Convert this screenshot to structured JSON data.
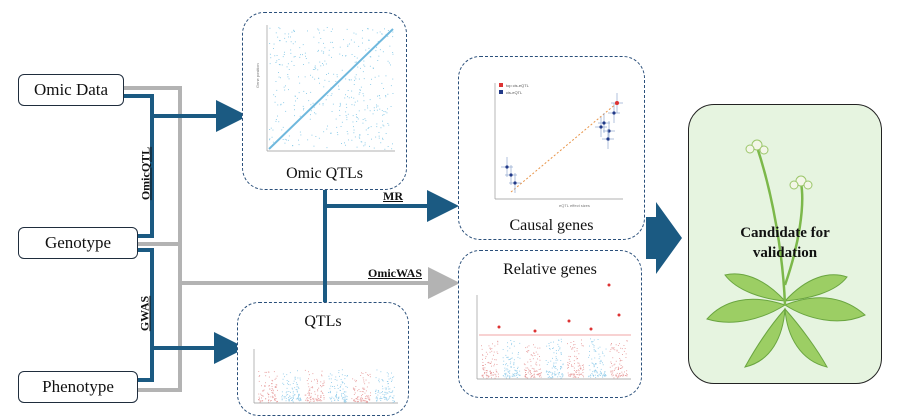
{
  "inputs": {
    "omic_data": "Omic Data",
    "genotype": "Genotype",
    "phenotype": "Phenotype"
  },
  "edge_labels": {
    "omic_qtl": "OmicQTL",
    "gwas": "GWAS",
    "mr": "MR",
    "omic_was": "OmicWAS"
  },
  "panels": {
    "omic_qtls": "Omic QTLs",
    "qtls": "QTLs",
    "causal_genes": "Causal genes",
    "relative_genes": "Relative genes"
  },
  "result": {
    "line1": "Candidate for",
    "line2": "validation"
  },
  "colors": {
    "dark_blue": "#1b5a82",
    "gray": "#b3b3b3",
    "panel_border": "#2a4f7a",
    "final_bg": "#e6f4e0",
    "scatter": "#7fc6e6",
    "manhattan_red": "#e79a9a",
    "manhattan_blue": "#8fcbea"
  }
}
